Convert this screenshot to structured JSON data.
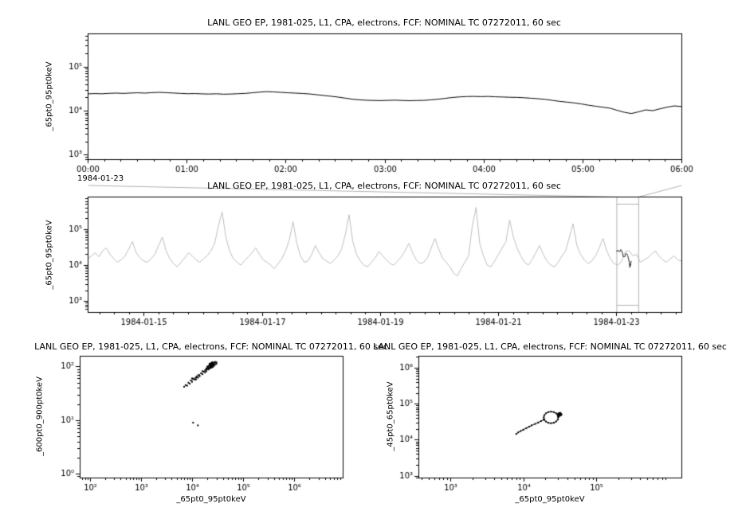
{
  "chart_data": [
    {
      "id": "top-zoom-timeseries",
      "type": "line",
      "title": "LANL GEO EP, 1981-025, L1, CPA, electrons, FCF: NOMINAL TC 07272011, 60 sec",
      "ylabel": "_65pt0_95pt0keV",
      "x_axis": {
        "kind": "time",
        "context_label": "1984-01-23",
        "range": [
          0,
          6
        ],
        "ticks": [
          0,
          1,
          2,
          3,
          4,
          5,
          6
        ],
        "tick_labels": [
          "00:00",
          "01:00",
          "02:00",
          "03:00",
          "04:00",
          "05:00",
          "06:00"
        ],
        "minor_step": 0.16667
      },
      "y_axis": {
        "kind": "log",
        "range_exponents": [
          2.9,
          5.75
        ],
        "tick_exponents": [
          3,
          4,
          5
        ],
        "tick_labels": [
          "10³",
          "10⁴",
          "10⁵"
        ]
      },
      "series": [
        {
          "name": "_65pt0_95pt0keV",
          "color": "#000000",
          "scale": 1000,
          "values": [
            24,
            24.4,
            24.1,
            24.7,
            25,
            24.6,
            25.1,
            25.4,
            25,
            25.6,
            26,
            25.5,
            25.1,
            24.6,
            24.2,
            24.4,
            24,
            23.8,
            24.1,
            23.6,
            23.8,
            24.2,
            24.6,
            25.4,
            26.3,
            27,
            26.6,
            26,
            25.4,
            25,
            24.5,
            23.9,
            23,
            22.1,
            21.2,
            20.3,
            19.2,
            18.2,
            17.6,
            17.2,
            17,
            16.9,
            17.1,
            17.3,
            17,
            16.8,
            17,
            17.1,
            17.6,
            18.2,
            19,
            19.9,
            20.5,
            20.9,
            21,
            20.8,
            21,
            20.6,
            20.4,
            20.1,
            20,
            19.6,
            19.1,
            18.6,
            18,
            17.1,
            16.2,
            15.6,
            15,
            14.2,
            13.3,
            12.6,
            12,
            11.4,
            10.2,
            9.2,
            8.6,
            9.4,
            10.4,
            10,
            11,
            12,
            12.8,
            12.4
          ]
        }
      ]
    },
    {
      "id": "context-overview-timeseries",
      "type": "line",
      "title": "LANL GEO EP, 1981-025, L1, CPA, electrons, FCF: NOMINAL TC 07272011, 60 sec",
      "ylabel": "_65pt0_95pt0keV",
      "x_axis": {
        "kind": "time",
        "range": [
          14.05,
          24.1
        ],
        "ticks": [
          15,
          17,
          19,
          21,
          23
        ],
        "tick_labels": [
          "1984-01-15",
          "1984-01-17",
          "1984-01-19",
          "1984-01-21",
          "1984-01-23"
        ],
        "minor_step": 0.25
      },
      "y_axis": {
        "kind": "log",
        "range_exponents": [
          2.7,
          5.9
        ],
        "tick_exponents": [
          3,
          4,
          5
        ],
        "tick_labels": [
          "10³",
          "10⁴",
          "10⁵"
        ]
      },
      "series": [
        {
          "name": "_65pt0_95pt0keV context",
          "color": "#bdbdbd",
          "scale": 1000,
          "values": [
            15,
            18,
            22,
            17,
            25,
            30,
            20,
            15,
            12,
            14,
            18,
            28,
            45,
            22,
            16,
            13,
            12,
            15,
            20,
            35,
            60,
            25,
            15,
            11,
            9,
            12,
            16,
            22,
            18,
            14,
            12,
            15,
            18,
            25,
            40,
            120,
            300,
            60,
            25,
            15,
            12,
            10,
            13,
            17,
            22,
            30,
            20,
            14,
            12,
            10,
            8,
            11,
            15,
            25,
            50,
            160,
            40,
            18,
            12,
            13,
            20,
            35,
            22,
            15,
            13,
            11,
            14,
            18,
            28,
            70,
            250,
            45,
            20,
            13,
            10,
            9,
            12,
            16,
            24,
            18,
            14,
            11,
            10,
            13,
            17,
            25,
            40,
            22,
            14,
            11,
            12,
            16,
            30,
            55,
            28,
            16,
            12,
            9,
            6,
            5,
            8,
            12,
            18,
            120,
            400,
            40,
            18,
            10,
            9,
            13,
            20,
            30,
            45,
            180,
            60,
            30,
            18,
            12,
            10,
            14,
            22,
            35,
            20,
            13,
            10,
            9,
            12,
            18,
            25,
            60,
            140,
            35,
            20,
            14,
            11,
            13,
            18,
            30,
            55,
            25,
            15,
            11,
            10,
            13,
            24,
            25,
            18,
            20,
            12,
            14,
            16,
            20,
            25,
            18,
            14,
            12,
            15,
            18,
            14,
            13
          ]
        }
      ],
      "highlight": {
        "note": "top panel data re-drawn in black over zoom interval",
        "start_day": 23.0,
        "end_day": 23.25,
        "color": "#000000"
      },
      "selection_box": {
        "start_day": 23.0,
        "end_day": 23.37,
        "color": "#b0b0b0"
      }
    },
    {
      "id": "scatter-600-900-vs-65-95",
      "type": "scatter",
      "title": "LANL GEO EP, 1981-025, L1, CPA, electrons, FCF: NOMINAL TC 07272011, 60 sec",
      "xlabel": "_65pt0_95pt0keV",
      "ylabel": "_600pt0_900pt0keV",
      "x_axis": {
        "kind": "log",
        "range_exponents": [
          1.8,
          6.95
        ],
        "tick_exponents": [
          2,
          3,
          4,
          5,
          6
        ],
        "tick_labels": [
          "10²",
          "10³",
          "10⁴",
          "10⁵",
          "10⁶"
        ]
      },
      "y_axis": {
        "kind": "log",
        "range_exponents": [
          -0.07,
          2.2
        ],
        "tick_exponents": [
          0,
          1,
          2
        ],
        "tick_labels": [
          "10⁰",
          "10¹",
          "10²"
        ]
      },
      "point_color": "#000000",
      "scatter_points": [
        [
          7000,
          42
        ],
        [
          7500,
          45
        ],
        [
          8000,
          44
        ],
        [
          8500,
          50
        ],
        [
          9000,
          48
        ],
        [
          9500,
          55
        ],
        [
          10000,
          52
        ],
        [
          10500,
          58
        ],
        [
          11000,
          60
        ],
        [
          11500,
          57
        ],
        [
          12000,
          63
        ],
        [
          12500,
          66
        ],
        [
          13000,
          62
        ],
        [
          13500,
          70
        ],
        [
          14000,
          68
        ],
        [
          15000,
          75
        ],
        [
          16000,
          72
        ],
        [
          17000,
          80
        ],
        [
          18000,
          85
        ],
        [
          19000,
          82
        ],
        [
          20000,
          90
        ],
        [
          21000,
          95
        ],
        [
          22000,
          92
        ],
        [
          23000,
          100
        ],
        [
          24000,
          105
        ],
        [
          25000,
          98
        ],
        [
          26000,
          110
        ],
        [
          27000,
          115
        ],
        [
          28000,
          108
        ],
        [
          29000,
          118
        ],
        [
          30000,
          112
        ],
        [
          22000,
          105
        ],
        [
          24000,
          95
        ],
        [
          26000,
          100
        ],
        [
          21000,
          88
        ],
        [
          19000,
          92
        ],
        [
          23000,
          110
        ],
        [
          25000,
          115
        ],
        [
          27000,
          105
        ],
        [
          20000,
          100
        ],
        [
          18000,
          78
        ],
        [
          16000,
          82
        ],
        [
          14000,
          66
        ],
        [
          12000,
          58
        ],
        [
          10000,
          60
        ],
        [
          30000,
          120
        ],
        [
          28000,
          122
        ],
        [
          26000,
          118
        ],
        [
          24000,
          112
        ],
        [
          22000,
          108
        ],
        [
          23000,
          95
        ],
        [
          24000,
          100
        ],
        [
          25000,
          108
        ],
        [
          26000,
          104
        ],
        [
          25000,
          120
        ],
        [
          23000,
          115
        ],
        [
          22000,
          112
        ],
        [
          21000,
          102
        ],
        [
          20000,
          96
        ],
        [
          19000,
          88
        ],
        [
          25500,
          112
        ],
        [
          24500,
          118
        ],
        [
          23500,
          105
        ],
        [
          22500,
          98
        ],
        [
          26500,
          115
        ],
        [
          10500,
          9
        ],
        [
          13000,
          8
        ]
      ]
    },
    {
      "id": "scatter-45-65-vs-65-95",
      "type": "scatter",
      "title": "LANL GEO EP, 1981-025, L1, CPA, electrons, FCF: NOMINAL TC 07272011, 60 sec",
      "xlabel": "_65pt0_95pt0keV",
      "ylabel": "_45pt0_65pt0keV",
      "x_axis": {
        "kind": "log",
        "range_exponents": [
          2.56,
          6.17
        ],
        "tick_exponents": [
          3,
          4,
          5
        ],
        "tick_labels": [
          "10³",
          "10⁴",
          "10⁵"
        ]
      },
      "y_axis": {
        "kind": "log",
        "range_exponents": [
          2.95,
          6.33
        ],
        "tick_exponents": [
          3,
          4,
          5,
          6
        ],
        "tick_labels": [
          "10³",
          "10⁴",
          "10⁵",
          "10⁶"
        ]
      },
      "point_color": "#000000",
      "path_points": [
        [
          8000,
          14500
        ],
        [
          8500,
          16000
        ],
        [
          9200,
          17500
        ],
        [
          10000,
          19000
        ],
        [
          11000,
          21000
        ],
        [
          12000,
          23000
        ],
        [
          13000,
          25000
        ],
        [
          14500,
          27500
        ],
        [
          16000,
          30000
        ],
        [
          17500,
          33000
        ],
        [
          19000,
          36000
        ],
        [
          19400,
          36200
        ],
        [
          20400,
          32100
        ],
        [
          22000,
          29600
        ],
        [
          24000,
          28800
        ],
        [
          26200,
          29600
        ],
        [
          28200,
          32100
        ],
        [
          29700,
          36200
        ],
        [
          30200,
          41700
        ],
        [
          29700,
          48000
        ],
        [
          28200,
          54100
        ],
        [
          26200,
          58600
        ],
        [
          24000,
          60300
        ],
        [
          22000,
          58600
        ],
        [
          20400,
          54100
        ],
        [
          19400,
          48000
        ],
        [
          19100,
          41700
        ],
        [
          19400,
          36200
        ]
      ],
      "scatter_points": [
        [
          31000,
          52000
        ],
        [
          32000,
          49000
        ],
        [
          30500,
          46000
        ],
        [
          33000,
          53000
        ],
        [
          31500,
          55000
        ],
        [
          29500,
          51000
        ],
        [
          32500,
          47000
        ],
        [
          30000,
          43000
        ],
        [
          31000,
          45000
        ],
        [
          32000,
          56000
        ],
        [
          30800,
          50000
        ],
        [
          29800,
          47500
        ],
        [
          31800,
          51500
        ],
        [
          33500,
          50000
        ],
        [
          30300,
          54000
        ]
      ]
    }
  ]
}
